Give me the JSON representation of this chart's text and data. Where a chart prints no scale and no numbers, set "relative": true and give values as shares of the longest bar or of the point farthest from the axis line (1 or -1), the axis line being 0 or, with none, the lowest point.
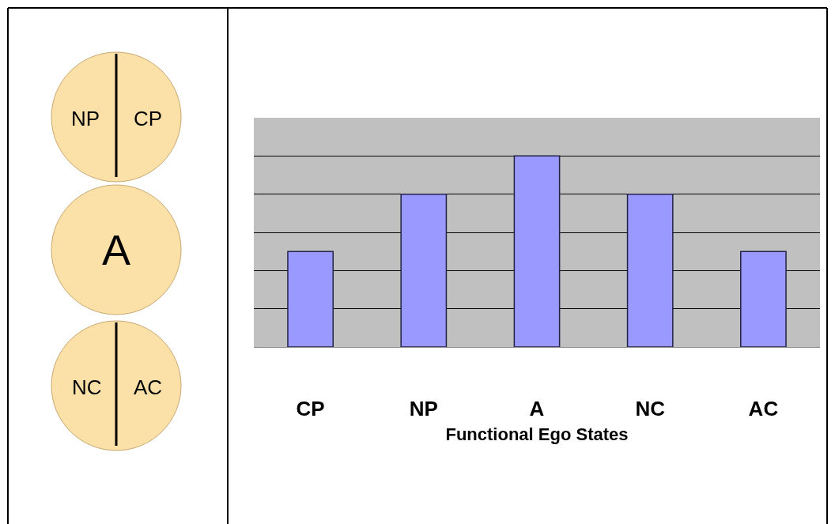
{
  "chart_data": [
    {
      "type": "other",
      "annotations": [
        "NP",
        "CP",
        "A",
        "NC",
        "AC"
      ]
    },
    {
      "type": "bar",
      "categories": [
        "CP",
        "NP",
        "A",
        "NC",
        "AC"
      ],
      "values": [
        0.5,
        0.8,
        1,
        0.8,
        0.5
      ],
      "relative": true,
      "color": "#9999ff",
      "xlabel": "Functional Ego States",
      "grid": "y",
      "legend": false
    }
  ]
}
